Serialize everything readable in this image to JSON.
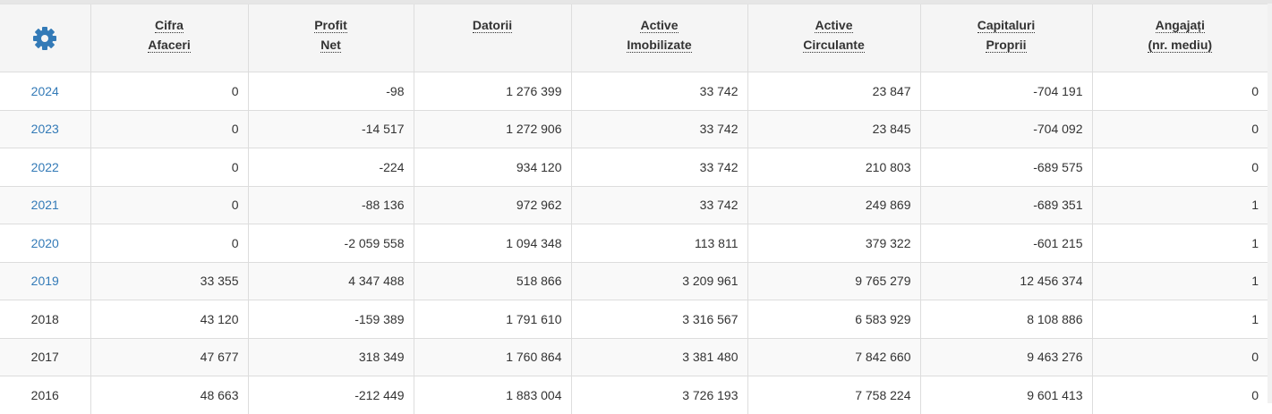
{
  "table": {
    "headers": [
      [
        "Cifra",
        "Afaceri"
      ],
      [
        "Profit",
        "Net"
      ],
      [
        "Datorii"
      ],
      [
        "Active",
        "Imobilizate"
      ],
      [
        "Active",
        "Circulante"
      ],
      [
        "Capitaluri",
        "Proprii"
      ],
      [
        "Angajați",
        "(nr. mediu)"
      ]
    ],
    "rows": [
      [
        "2024",
        "0",
        "-98",
        "1 276 399",
        "33 742",
        "23 847",
        "-704 191",
        "0"
      ],
      [
        "2023",
        "0",
        "-14 517",
        "1 272 906",
        "33 742",
        "23 845",
        "-704 092",
        "0"
      ],
      [
        "2022",
        "0",
        "-224",
        "934 120",
        "33 742",
        "210 803",
        "-689 575",
        "0"
      ],
      [
        "2021",
        "0",
        "-88 136",
        "972 962",
        "33 742",
        "249 869",
        "-689 351",
        "1"
      ],
      [
        "2020",
        "0",
        "-2 059 558",
        "1 094 348",
        "113 811",
        "379 322",
        "-601 215",
        "1"
      ],
      [
        "2019",
        "33 355",
        "4 347 488",
        "518 866",
        "3 209 961",
        "9 765 279",
        "12 456 374",
        "1"
      ],
      [
        "2018",
        "43 120",
        "-159 389",
        "1 791 610",
        "3 316 567",
        "6 583 929",
        "8 108 886",
        "1"
      ],
      [
        "2017",
        "47 677",
        "318 349",
        "1 760 864",
        "3 381 480",
        "7 842 660",
        "9 463 276",
        "0"
      ],
      [
        "2016",
        "48 663",
        "-212 449",
        "1 883 004",
        "3 726 193",
        "7 758 224",
        "9 601 413",
        "0"
      ]
    ]
  }
}
